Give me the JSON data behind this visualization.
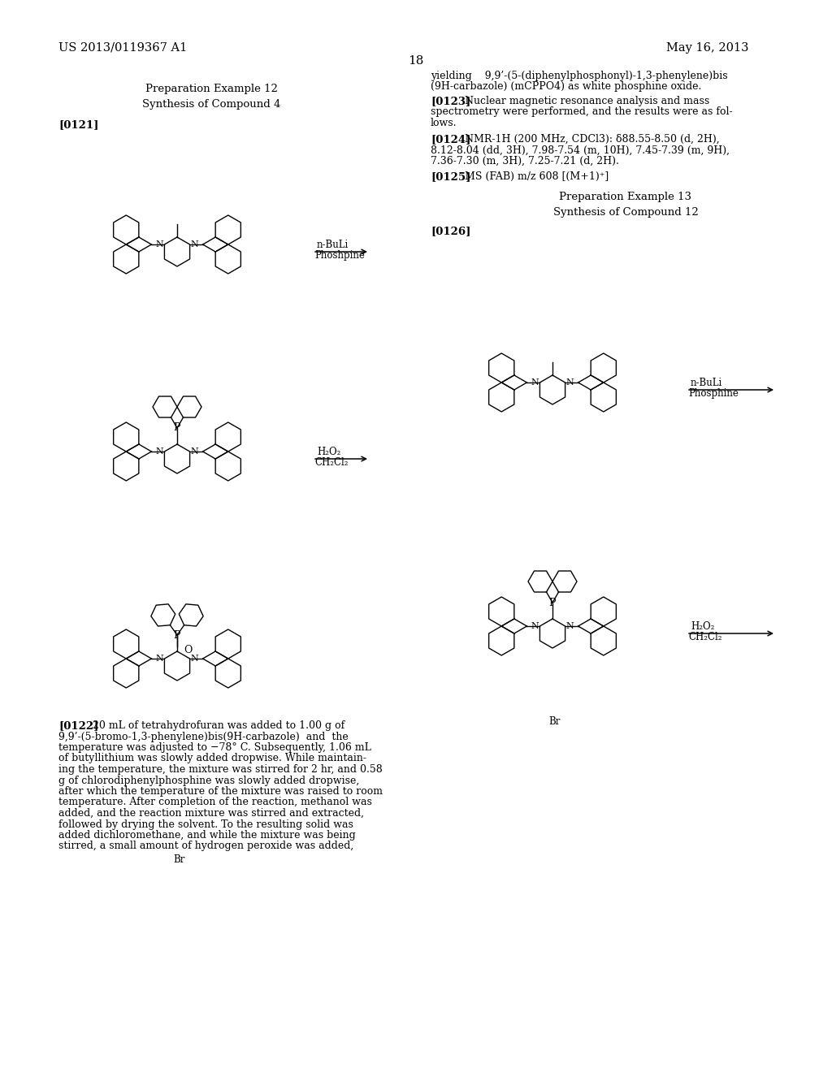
{
  "background_color": "#ffffff",
  "header_left": "US 2013/0119367 A1",
  "header_right": "May 16, 2013",
  "page_number": "18",
  "prep_ex12_title": "Preparation Example 12",
  "prep_ex12_sub": "Synthesis of Compound 4",
  "para_0121": "[0121]",
  "para_0122_label": "[0122]",
  "para_0123_label": "[0123]",
  "para_0124_label": "[0124]",
  "para_0125_label": "[0125]",
  "para_0126_label": "[0126]",
  "prep_ex13_title": "Preparation Example 13",
  "prep_ex13_sub": "Synthesis of Compound 12",
  "arrow1_top": "n-BuLi",
  "arrow1_bot": "Phoshpine",
  "arrow2_top": "H₂O₂",
  "arrow2_bot": "CH₂Cl₂",
  "arrow3_top": "n-BuLi",
  "arrow3_bot": "Phosphine",
  "arrow4_top": "H₂O₂",
  "arrow4_bot": "CH₂Cl₂",
  "text_0123": "Nuclear magnetic resonance analysis and mass\nspectrometry were performed, and the results were as fol-\nlows.",
  "text_0124": "NMR-1H (200 MHz, CDCl3): δ88.55-8.50 (d, 2H),\n8.12-8.04 (dd, 3H), 7.98-7.54 (m, 10H), 7.45-7.39 (m, 9H),\n7.36-7.30 (m, 3H), 7.25-7.21 (d, 2H).",
  "text_0125": "MS (FAB) m/z 608 [(M+1)⁺]",
  "text_yielding": "yielding    9,9’-(5-(diphenylphosphonyl)-1,3-phenylene)bis\n(9H-carbazole) (mCPPO4) as white phosphine oxide.",
  "text_0122": "20 mL of tetrahydrofuran was added to 1.00 g of\n9,9’-(5-bromo-1,3-phenylene)bis(9H-carbazole)  and  the\ntemperature was adjusted to −78° C. Subsequently, 1.06 mL\nof butyllithium was slowly added dropwise. While maintain-\ning the temperature, the mixture was stirred for 2 hr, and 0.58\ng of chlorodiphenylphosphine was slowly added dropwise,\nafter which the temperature of the mixture was raised to room\ntemperature. After completion of the reaction, methanol was\nadded, and the reaction mixture was stirred and extracted,\nfollowed by drying the solvent. To the resulting solid was\nadded dichloromethane, and while the mixture was being\nstirred, a small amount of hydrogen peroxide was added,"
}
